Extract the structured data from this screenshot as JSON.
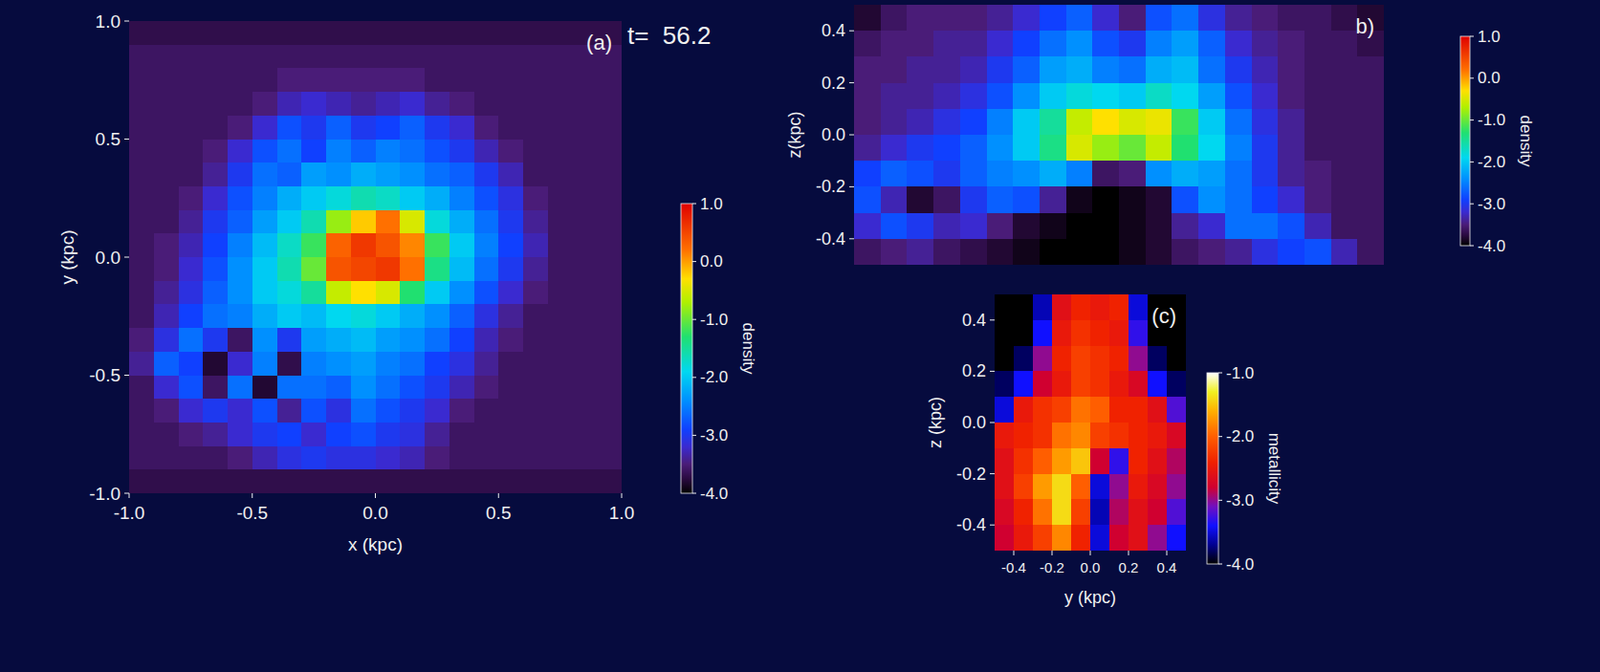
{
  "chart_data": [
    {
      "type": "heatmap",
      "title": "(a)",
      "annotation": "t=  56.2",
      "xlabel": "x (kpc)",
      "ylabel": "y (kpc)",
      "xlim": [
        -1,
        1
      ],
      "ylim": [
        -1,
        1
      ],
      "xticks": [
        {
          "value": -1,
          "label": "-1.0"
        },
        -0.5,
        {
          "value": 0,
          "label": "0.0"
        },
        0.5,
        {
          "value": 1,
          "label": "1.0"
        }
      ],
      "yticks": [
        {
          "value": -1,
          "label": "-1.0"
        },
        -0.5,
        {
          "value": 0,
          "label": "0.0"
        },
        0.5,
        {
          "value": 1,
          "label": "1.0"
        }
      ],
      "color": "rainbow",
      "x": [
        -0.95,
        -0.85,
        -0.75,
        -0.65,
        -0.55,
        -0.45,
        -0.35,
        -0.25,
        -0.15,
        -0.05,
        0.05,
        0.15,
        0.25,
        0.35,
        0.45,
        0.55,
        0.65,
        0.75,
        0.85,
        0.95
      ],
      "y": [
        0.95,
        0.85,
        0.75,
        0.65,
        0.55,
        0.45,
        0.35,
        0.25,
        0.15,
        0.05,
        -0.05,
        -0.15,
        -0.25,
        -0.35,
        -0.45,
        -0.55,
        -0.65,
        -0.75,
        -0.85,
        -0.95
      ],
      "values": [
        [
          -3.7,
          -3.7,
          -3.7,
          -3.7,
          -3.7,
          -3.7,
          -3.7,
          -3.7,
          -3.7,
          -3.7,
          -3.7,
          -3.7,
          -3.7,
          -3.7,
          -3.7,
          -3.7,
          -3.7,
          -3.7,
          -3.7,
          -3.7
        ],
        [
          -3.6,
          -3.6,
          -3.6,
          -3.6,
          -3.6,
          -3.6,
          -3.6,
          -3.6,
          -3.6,
          -3.6,
          -3.6,
          -3.6,
          -3.6,
          -3.6,
          -3.6,
          -3.6,
          -3.6,
          -3.6,
          -3.6,
          -3.6
        ],
        [
          -3.6,
          -3.6,
          -3.6,
          -3.6,
          -3.6,
          -3.6,
          -3.5,
          -3.5,
          -3.5,
          -3.5,
          -3.5,
          -3.5,
          -3.6,
          -3.6,
          -3.6,
          -3.6,
          -3.6,
          -3.6,
          -3.6,
          -3.6
        ],
        [
          -3.6,
          -3.6,
          -3.6,
          -3.6,
          -3.6,
          -3.5,
          -3.3,
          -3.2,
          -3.3,
          -3.4,
          -3.3,
          -3.2,
          -3.4,
          -3.5,
          -3.6,
          -3.6,
          -3.6,
          -3.6,
          -3.6,
          -3.6
        ],
        [
          -3.6,
          -3.6,
          -3.6,
          -3.6,
          -3.5,
          -3.2,
          -2.8,
          -3.0,
          -2.7,
          -3.0,
          -2.9,
          -2.7,
          -3.0,
          -3.2,
          -3.5,
          -3.6,
          -3.6,
          -3.6,
          -3.6,
          -3.6
        ],
        [
          -3.6,
          -3.6,
          -3.6,
          -3.5,
          -3.2,
          -2.8,
          -2.6,
          -2.9,
          -2.5,
          -2.7,
          -2.5,
          -2.6,
          -2.8,
          -3.0,
          -3.3,
          -3.5,
          -3.6,
          -3.6,
          -3.6,
          -3.6
        ],
        [
          -3.6,
          -3.6,
          -3.6,
          -3.4,
          -3.0,
          -2.6,
          -2.7,
          -2.3,
          -2.4,
          -2.2,
          -2.3,
          -2.4,
          -2.6,
          -2.7,
          -3.0,
          -3.3,
          -3.6,
          -3.6,
          -3.6,
          -3.6
        ],
        [
          -3.6,
          -3.6,
          -3.5,
          -3.2,
          -2.8,
          -2.5,
          -2.2,
          -2.0,
          -1.8,
          -1.6,
          -1.7,
          -2.0,
          -2.2,
          -2.5,
          -2.8,
          -3.1,
          -3.5,
          -3.6,
          -3.6,
          -3.6
        ],
        [
          -3.6,
          -3.6,
          -3.4,
          -3.0,
          -2.7,
          -2.3,
          -2.0,
          -1.6,
          -0.8,
          -0.2,
          0.2,
          -0.5,
          -1.8,
          -2.2,
          -2.6,
          -3.0,
          -3.4,
          -3.6,
          -3.6,
          -3.6
        ],
        [
          -3.6,
          -3.5,
          -3.3,
          -2.9,
          -2.5,
          -2.1,
          -1.7,
          -1.2,
          0.3,
          0.6,
          0.4,
          0.1,
          -1.2,
          -2.0,
          -2.5,
          -2.9,
          -3.3,
          -3.6,
          -3.6,
          -3.6
        ],
        [
          -3.6,
          -3.5,
          -3.2,
          -2.8,
          -2.4,
          -2.0,
          -1.6,
          -1.0,
          0.4,
          0.5,
          0.6,
          0.2,
          -1.4,
          -2.1,
          -2.6,
          -3.0,
          -3.4,
          -3.6,
          -3.6,
          -3.6
        ],
        [
          -3.6,
          -3.4,
          -3.1,
          -2.7,
          -2.4,
          -2.0,
          -1.8,
          -1.5,
          -0.6,
          -0.3,
          -0.5,
          -1.3,
          -2.0,
          -2.4,
          -2.8,
          -3.2,
          -3.5,
          -3.6,
          -3.6,
          -3.6
        ],
        [
          -3.6,
          -3.3,
          -2.9,
          -2.6,
          -2.5,
          -2.2,
          -2.0,
          -2.1,
          -1.9,
          -1.8,
          -2.0,
          -2.2,
          -2.4,
          -2.7,
          -3.1,
          -3.4,
          -3.6,
          -3.6,
          -3.6,
          -3.6
        ],
        [
          -3.5,
          -3.1,
          -2.6,
          -3.0,
          -3.6,
          -2.4,
          -3.0,
          -2.3,
          -2.2,
          -2.1,
          -2.3,
          -2.4,
          -2.6,
          -2.9,
          -3.3,
          -3.5,
          -3.6,
          -3.6,
          -3.6,
          -3.6
        ],
        [
          -3.4,
          -2.7,
          -2.9,
          -3.8,
          -3.2,
          -2.5,
          -3.7,
          -2.5,
          -2.4,
          -2.3,
          -2.5,
          -2.6,
          -2.9,
          -3.1,
          -3.4,
          -3.6,
          -3.6,
          -3.6,
          -3.6,
          -3.6
        ],
        [
          -3.6,
          -3.2,
          -2.8,
          -3.6,
          -2.6,
          -3.8,
          -2.6,
          -2.6,
          -2.7,
          -2.4,
          -2.6,
          -2.8,
          -3.0,
          -3.3,
          -3.5,
          -3.6,
          -3.6,
          -3.6,
          -3.6,
          -3.6
        ],
        [
          -3.6,
          -3.5,
          -3.2,
          -3.0,
          -3.2,
          -2.8,
          -3.4,
          -2.8,
          -3.1,
          -2.6,
          -2.8,
          -3.0,
          -3.2,
          -3.5,
          -3.6,
          -3.6,
          -3.6,
          -3.6,
          -3.6,
          -3.6
        ],
        [
          -3.6,
          -3.6,
          -3.5,
          -3.4,
          -3.2,
          -3.0,
          -2.9,
          -3.2,
          -2.9,
          -2.8,
          -3.0,
          -3.1,
          -3.4,
          -3.6,
          -3.6,
          -3.6,
          -3.6,
          -3.6,
          -3.6,
          -3.6
        ],
        [
          -3.6,
          -3.6,
          -3.6,
          -3.6,
          -3.5,
          -3.3,
          -3.1,
          -3.0,
          -3.1,
          -3.1,
          -3.2,
          -3.3,
          -3.5,
          -3.6,
          -3.6,
          -3.6,
          -3.6,
          -3.6,
          -3.6,
          -3.6
        ],
        [
          -3.7,
          -3.7,
          -3.7,
          -3.7,
          -3.7,
          -3.7,
          -3.7,
          -3.7,
          -3.7,
          -3.7,
          -3.7,
          -3.7,
          -3.7,
          -3.7,
          -3.7,
          -3.7,
          -3.7,
          -3.7,
          -3.7,
          -3.7
        ]
      ],
      "colorbar_lim": [
        -4,
        1
      ],
      "colorbar_ticks": [
        {
          "value": 1,
          "label": "1.0"
        },
        {
          "value": 0,
          "label": "0.0"
        },
        {
          "value": -1,
          "label": "-1.0"
        },
        {
          "value": -2,
          "label": "-2.0"
        },
        {
          "value": -3,
          "label": "-3.0"
        },
        {
          "value": -4,
          "label": "-4.0"
        }
      ],
      "colorbar_label": "density"
    },
    {
      "type": "heatmap",
      "title": "b)",
      "ylabel": "z(kpc)",
      "tick_labels": "y",
      "xlim": [
        -1,
        1
      ],
      "ylim": [
        -0.5,
        0.5
      ],
      "yticks": [
        0.4,
        0.2,
        {
          "value": 0,
          "label": "0.0"
        },
        -0.2,
        -0.4
      ],
      "color": "rainbow",
      "x": [
        -0.95,
        -0.85,
        -0.75,
        -0.65,
        -0.55,
        -0.45,
        -0.35,
        -0.25,
        -0.15,
        -0.05,
        0.05,
        0.15,
        0.25,
        0.35,
        0.45,
        0.55,
        0.65,
        0.75,
        0.85,
        0.95
      ],
      "y": [
        0.45,
        0.35,
        0.25,
        0.15,
        0.05,
        -0.05,
        -0.15,
        -0.25,
        -0.35,
        -0.45
      ],
      "values": [
        [
          -3.8,
          -3.6,
          -3.5,
          -3.5,
          -3.5,
          -3.4,
          -3.2,
          -2.9,
          -2.7,
          -3.2,
          -3.5,
          -2.8,
          -2.6,
          -3.1,
          -3.4,
          -3.5,
          -3.6,
          -3.6,
          -3.7,
          -3.8
        ],
        [
          -3.6,
          -3.5,
          -3.5,
          -3.4,
          -3.4,
          -3.2,
          -2.9,
          -2.6,
          -2.4,
          -2.8,
          -3.0,
          -2.5,
          -2.3,
          -2.7,
          -3.2,
          -3.4,
          -3.5,
          -3.6,
          -3.6,
          -3.7
        ],
        [
          -3.5,
          -3.5,
          -3.4,
          -3.4,
          -3.3,
          -3.0,
          -2.7,
          -2.3,
          -2.2,
          -2.5,
          -2.6,
          -2.2,
          -2.1,
          -2.6,
          -3.0,
          -3.3,
          -3.5,
          -3.6,
          -3.6,
          -3.6
        ],
        [
          -3.5,
          -3.4,
          -3.4,
          -3.3,
          -3.1,
          -2.8,
          -2.4,
          -2.0,
          -1.8,
          -1.9,
          -2.0,
          -1.7,
          -1.9,
          -2.3,
          -2.8,
          -3.2,
          -3.5,
          -3.6,
          -3.6,
          -3.6
        ],
        [
          -3.5,
          -3.4,
          -3.3,
          -3.1,
          -2.9,
          -2.5,
          -2.0,
          -1.5,
          -0.6,
          -0.3,
          -0.5,
          -0.4,
          -1.2,
          -2.0,
          -2.6,
          -3.1,
          -3.4,
          -3.6,
          -3.6,
          -3.6
        ],
        [
          -3.4,
          -3.2,
          -3.0,
          -2.9,
          -2.7,
          -2.4,
          -2.0,
          -1.4,
          -0.5,
          -0.8,
          -1.0,
          -0.6,
          -1.3,
          -1.9,
          -2.5,
          -3.0,
          -3.4,
          -3.6,
          -3.6,
          -3.6
        ],
        [
          -2.9,
          -2.7,
          -2.8,
          -3.0,
          -2.7,
          -2.5,
          -2.4,
          -2.2,
          -2.5,
          -3.6,
          -3.5,
          -2.4,
          -2.2,
          -2.3,
          -2.6,
          -3.0,
          -3.4,
          -3.5,
          -3.6,
          -3.6
        ],
        [
          -2.8,
          -3.3,
          -3.8,
          -3.6,
          -3.0,
          -2.7,
          -2.8,
          -3.4,
          -3.9,
          -4.0,
          -3.9,
          -3.8,
          -2.8,
          -2.4,
          -2.6,
          -2.9,
          -3.2,
          -3.5,
          -3.6,
          -3.6
        ],
        [
          -3.2,
          -2.8,
          -3.0,
          -3.3,
          -3.2,
          -3.5,
          -3.8,
          -3.9,
          -4.0,
          -4.0,
          -3.9,
          -3.8,
          -3.4,
          -3.2,
          -2.6,
          -2.6,
          -2.8,
          -3.3,
          -3.6,
          -3.6
        ],
        [
          -3.6,
          -3.5,
          -3.4,
          -3.6,
          -3.7,
          -3.8,
          -3.9,
          -4.0,
          -4.0,
          -4.0,
          -3.9,
          -3.8,
          -3.6,
          -3.5,
          -3.4,
          -3.1,
          -2.9,
          -2.8,
          -3.3,
          -3.6
        ]
      ],
      "colorbar_lim": [
        -4,
        1
      ],
      "colorbar_ticks": [
        {
          "value": 1,
          "label": "1.0"
        },
        {
          "value": 0,
          "label": "0.0"
        },
        {
          "value": -1,
          "label": "-1.0"
        },
        {
          "value": -2,
          "label": "-2.0"
        },
        {
          "value": -3,
          "label": "-3.0"
        },
        {
          "value": -4,
          "label": "-4.0"
        }
      ],
      "colorbar_label": "density"
    },
    {
      "type": "heatmap",
      "title": "(c)",
      "xlabel": "y (kpc)",
      "ylabel": "z (kpc)",
      "xlim": [
        -0.5,
        0.5
      ],
      "ylim": [
        -0.5,
        0.5
      ],
      "xticks": [
        -0.4,
        -0.2,
        {
          "value": 0,
          "label": "0.0"
        },
        0.2,
        0.4
      ],
      "yticks": [
        0.4,
        0.2,
        {
          "value": 0,
          "label": "0.0"
        },
        -0.2,
        -0.4
      ],
      "color": "heat",
      "x": [
        -0.45,
        -0.35,
        -0.25,
        -0.15,
        -0.05,
        0.05,
        0.15,
        0.25,
        0.35,
        0.45
      ],
      "y": [
        0.45,
        0.35,
        0.25,
        0.15,
        0.05,
        -0.05,
        -0.15,
        -0.25,
        -0.35,
        -0.45
      ],
      "values": [
        [
          -4.0,
          -4.0,
          -3.6,
          -2.6,
          -2.4,
          -2.5,
          -2.4,
          -3.5,
          -4.0,
          -4.0
        ],
        [
          -4.0,
          -4.0,
          -3.4,
          -2.5,
          -2.3,
          -2.4,
          -2.5,
          -3.3,
          -4.0,
          -4.0
        ],
        [
          -4.0,
          -3.8,
          -3.0,
          -2.4,
          -2.2,
          -2.3,
          -2.4,
          -3.0,
          -3.8,
          -4.0
        ],
        [
          -3.8,
          -3.4,
          -2.8,
          -2.5,
          -2.2,
          -2.3,
          -2.5,
          -2.7,
          -3.4,
          -3.8
        ],
        [
          -3.5,
          -2.5,
          -2.3,
          -2.2,
          -1.9,
          -2.0,
          -2.4,
          -2.4,
          -2.6,
          -3.2
        ],
        [
          -2.5,
          -2.4,
          -2.3,
          -1.9,
          -1.8,
          -2.2,
          -2.3,
          -2.4,
          -2.5,
          -2.7
        ],
        [
          -2.6,
          -2.3,
          -2.0,
          -1.7,
          -1.5,
          -2.8,
          -3.3,
          -2.4,
          -2.6,
          -2.9
        ],
        [
          -2.6,
          -2.2,
          -1.7,
          -1.4,
          -2.0,
          -3.5,
          -3.0,
          -2.5,
          -2.7,
          -3.0
        ],
        [
          -2.7,
          -2.4,
          -1.9,
          -1.4,
          -2.2,
          -3.6,
          -2.9,
          -2.6,
          -2.8,
          -3.2
        ],
        [
          -2.8,
          -2.5,
          -2.2,
          -1.8,
          -2.4,
          -3.5,
          -2.8,
          -2.6,
          -3.0,
          -3.4
        ]
      ],
      "colorbar_lim": [
        -4,
        -1
      ],
      "colorbar_ticks": [
        {
          "value": -1,
          "label": "-1.0"
        },
        {
          "value": -2,
          "label": "-2.0"
        },
        {
          "value": -3,
          "label": "-3.0"
        },
        {
          "value": -4,
          "label": "-4.0"
        }
      ],
      "colorbar_label": "metallicity"
    }
  ]
}
